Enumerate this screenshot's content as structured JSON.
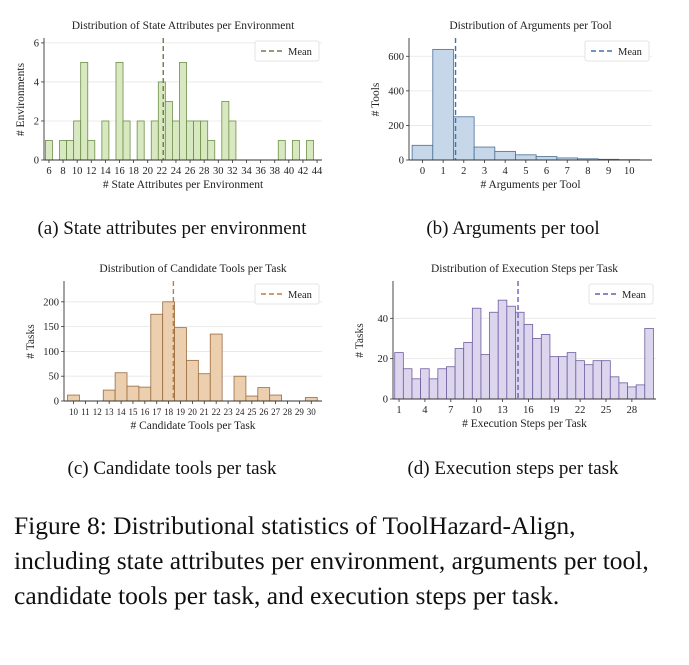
{
  "caption": "Figure 8: Distributional statistics of ToolHazard-Align, including state attributes per environment, arguments per tool, candidate tools per task, and execution steps per task.",
  "chart_data": [
    {
      "id": "a",
      "type": "bar",
      "subcaption": "(a) State attributes per environment",
      "title": "Distribution of State Attributes per Environment",
      "xlabel": "# State Attributes per Environment",
      "ylabel": "# Environments",
      "x": [
        6,
        7,
        8,
        9,
        10,
        11,
        12,
        13,
        14,
        15,
        16,
        17,
        18,
        19,
        20,
        21,
        22,
        23,
        24,
        25,
        26,
        27,
        28,
        29,
        30,
        31,
        32,
        33,
        34,
        35,
        36,
        37,
        38,
        39,
        40,
        41,
        42,
        43,
        44
      ],
      "values": [
        1,
        0,
        1,
        1,
        2,
        5,
        1,
        0,
        2,
        0,
        5,
        2,
        0,
        2,
        0,
        2,
        4,
        3,
        2,
        5,
        2,
        2,
        2,
        1,
        0,
        3,
        2,
        0,
        0,
        0,
        0,
        0,
        0,
        1,
        0,
        1,
        0,
        1,
        0
      ],
      "xticks": [
        6,
        8,
        10,
        12,
        14,
        16,
        18,
        20,
        22,
        24,
        26,
        28,
        30,
        32,
        34,
        36,
        38,
        40,
        42,
        44
      ],
      "yticks": [
        0,
        2,
        4,
        6
      ],
      "xlim": [
        5.3,
        44.7
      ],
      "ylim": [
        0,
        6.2
      ],
      "mean": 22.2,
      "mean_label": "Mean",
      "legend": "top-right",
      "color": "#d8e8c0",
      "edge": "#6f8f4a",
      "mean_color": "#6e7d45"
    },
    {
      "id": "b",
      "type": "bar",
      "subcaption": "(b) Arguments per tool",
      "title": "Distribution of Arguments per Tool",
      "xlabel": "# Arguments per Tool",
      "ylabel": "# Tools",
      "x": [
        0,
        1,
        2,
        3,
        4,
        5,
        6,
        7,
        8,
        9,
        10
      ],
      "values": [
        85,
        640,
        250,
        75,
        50,
        30,
        20,
        12,
        7,
        4,
        2
      ],
      "xticks": [
        0,
        1,
        2,
        3,
        4,
        5,
        6,
        7,
        8,
        9,
        10
      ],
      "yticks": [
        0,
        200,
        400,
        600
      ],
      "xlim": [
        -0.65,
        11.1
      ],
      "ylim": [
        0,
        700
      ],
      "mean": 1.6,
      "mean_label": "Mean",
      "legend": "top-right",
      "color": "#c5d7e8",
      "edge": "#4a6f95",
      "mean_color": "#3d73b3"
    },
    {
      "id": "c",
      "type": "bar",
      "subcaption": "(c) Candidate tools per task",
      "title": "Distribution of Candidate Tools per Task",
      "xlabel": "# Candidate Tools per Task",
      "ylabel": "# Tasks",
      "x": [
        10,
        11,
        12,
        13,
        14,
        15,
        16,
        17,
        18,
        19,
        20,
        21,
        22,
        23,
        24,
        25,
        26,
        27,
        28,
        29,
        30
      ],
      "values": [
        12,
        0,
        0,
        22,
        57,
        30,
        28,
        175,
        200,
        148,
        82,
        55,
        135,
        0,
        50,
        10,
        27,
        12,
        0,
        0,
        7
      ],
      "xticks": [
        10,
        11,
        12,
        13,
        14,
        15,
        16,
        17,
        18,
        19,
        20,
        21,
        22,
        23,
        24,
        25,
        26,
        27,
        28,
        29,
        30
      ],
      "yticks": [
        0,
        50,
        100,
        150,
        200
      ],
      "xlim": [
        9.2,
        30.9
      ],
      "ylim": [
        0,
        240
      ],
      "mean": 18.4,
      "mean_label": "Mean",
      "legend": "top-right",
      "color": "#eccfae",
      "edge": "#9a6a3f",
      "mean_color": "#c27a42"
    },
    {
      "id": "d",
      "type": "bar",
      "subcaption": "(d) Execution steps per task",
      "title": "Distribution of Execution Steps per Task",
      "xlabel": "# Execution Steps per Task",
      "ylabel": "# Tasks",
      "x": [
        1,
        2,
        3,
        4,
        5,
        6,
        7,
        8,
        9,
        10,
        11,
        12,
        13,
        14,
        15,
        16,
        17,
        18,
        19,
        20,
        21,
        22,
        23,
        24,
        25,
        26,
        27,
        28,
        29,
        30
      ],
      "values": [
        23,
        15,
        10,
        15,
        10,
        15,
        16,
        25,
        28,
        45,
        22,
        43,
        49,
        46,
        43,
        37,
        30,
        32,
        21,
        21,
        23,
        19,
        17,
        19,
        19,
        11,
        8,
        6,
        7,
        35
      ],
      "xticks": [
        1,
        4,
        7,
        10,
        13,
        16,
        19,
        22,
        25,
        28
      ],
      "yticks": [
        0,
        20,
        40
      ],
      "xlim": [
        0.3,
        30.8
      ],
      "ylim": [
        0,
        58
      ],
      "mean": 14.8,
      "mean_label": "Mean",
      "legend": "top-right",
      "color": "#dcd5ee",
      "edge": "#6d5d9e",
      "mean_color": "#6c5fb4"
    }
  ]
}
